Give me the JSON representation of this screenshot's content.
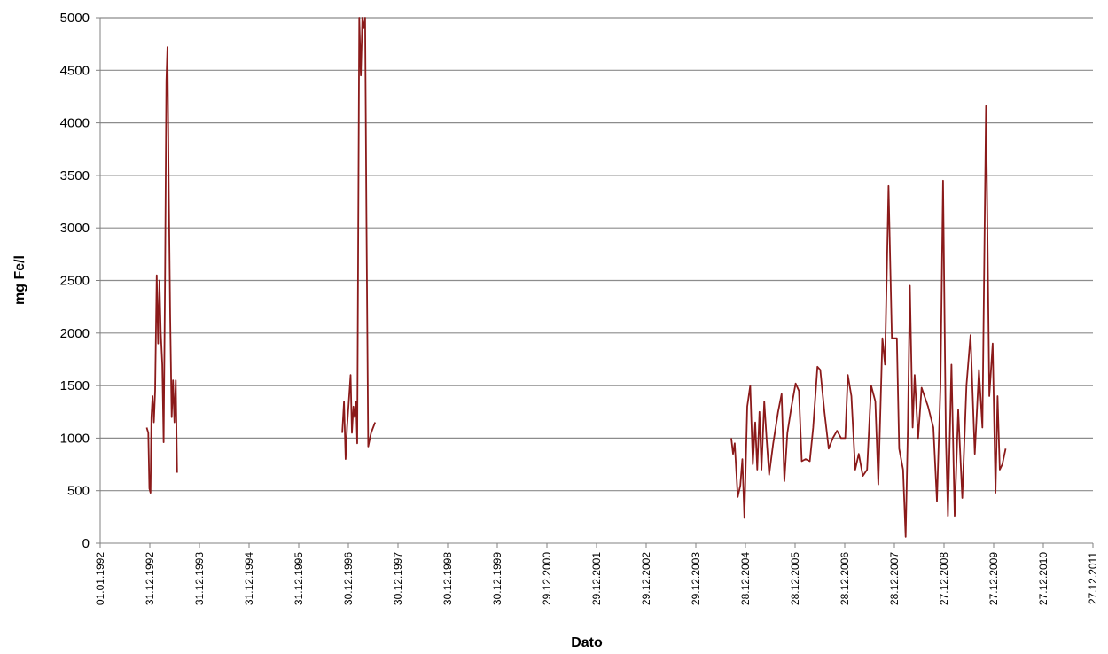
{
  "chart_data": {
    "type": "line",
    "xlabel": "Dato",
    "ylabel": "mg Fe/l",
    "ylim": [
      0,
      5000
    ],
    "xlim": [
      "1992-01-01",
      "2011-12-27"
    ],
    "y_ticks": [
      "0",
      "500",
      "1000",
      "1500",
      "2000",
      "2500",
      "3000",
      "3500",
      "4000",
      "4500",
      "5000"
    ],
    "x_ticks": [
      "01.01.1992",
      "31.12.1992",
      "31.12.1993",
      "31.12.1994",
      "31.12.1995",
      "30.12.1996",
      "30.12.1997",
      "30.12.1998",
      "30.12.1999",
      "29.12.2000",
      "29.12.2001",
      "29.12.2002",
      "29.12.2003",
      "28.12.2004",
      "28.12.2005",
      "28.12.2006",
      "28.12.2007",
      "27.12.2008",
      "27.12.2009",
      "27.12.2010",
      "27.12.2011"
    ],
    "grid": true,
    "line_color": "#8b1a1a",
    "series": [
      {
        "segments": [
          [
            [
              "1992-12-08",
              1100
            ],
            [
              "1992-12-20",
              1050
            ],
            [
              "1992-12-28",
              520
            ],
            [
              "1993-01-05",
              480
            ],
            [
              "1993-01-12",
              1200
            ],
            [
              "1993-01-20",
              1400
            ],
            [
              "1993-01-30",
              1150
            ],
            [
              "1993-02-08",
              1450
            ],
            [
              "1993-02-20",
              2550
            ],
            [
              "1993-03-02",
              1900
            ],
            [
              "1993-03-12",
              2500
            ],
            [
              "1993-03-22",
              2000
            ],
            [
              "1993-04-02",
              1700
            ],
            [
              "1993-04-12",
              960
            ],
            [
              "1993-04-22",
              2500
            ],
            [
              "1993-05-02",
              4400
            ],
            [
              "1993-05-10",
              4720
            ],
            [
              "1993-05-20",
              3300
            ],
            [
              "1993-05-30",
              2150
            ],
            [
              "1993-06-10",
              1200
            ],
            [
              "1993-06-20",
              1550
            ],
            [
              "1993-06-30",
              1150
            ],
            [
              "1993-07-10",
              1550
            ],
            [
              "1993-07-20",
              670
            ]
          ],
          [
            [
              "1996-11-15",
              1050
            ],
            [
              "1996-11-28",
              1350
            ],
            [
              "1996-12-10",
              800
            ],
            [
              "1996-12-20",
              1100
            ],
            [
              "1997-01-05",
              1400
            ],
            [
              "1997-01-15",
              1600
            ],
            [
              "1997-01-25",
              1050
            ],
            [
              "1997-02-05",
              1300
            ],
            [
              "1997-02-15",
              1200
            ],
            [
              "1997-02-25",
              1350
            ],
            [
              "1997-03-05",
              950
            ],
            [
              "1997-03-20",
              5000
            ],
            [
              "1997-04-01",
              4450
            ],
            [
              "1997-04-12",
              5000
            ],
            [
              "1997-04-22",
              4900
            ],
            [
              "1997-05-02",
              5000
            ],
            [
              "1997-05-12",
              3100
            ],
            [
              "1997-05-25",
              920
            ],
            [
              "1997-06-15",
              1050
            ],
            [
              "1997-07-15",
              1150
            ]
          ],
          [
            [
              "2004-09-15",
              1000
            ],
            [
              "2004-09-28",
              850
            ],
            [
              "2004-10-10",
              950
            ],
            [
              "2004-11-01",
              440
            ],
            [
              "2004-11-20",
              550
            ],
            [
              "2004-12-05",
              800
            ],
            [
              "2004-12-20",
              240
            ],
            [
              "2005-01-10",
              1300
            ],
            [
              "2005-02-01",
              1500
            ],
            [
              "2005-02-20",
              750
            ],
            [
              "2005-03-10",
              1150
            ],
            [
              "2005-03-25",
              700
            ],
            [
              "2005-04-10",
              1250
            ],
            [
              "2005-04-25",
              700
            ],
            [
              "2005-05-15",
              1350
            ],
            [
              "2005-06-01",
              1000
            ],
            [
              "2005-06-20",
              650
            ],
            [
              "2005-07-20",
              950
            ],
            [
              "2005-08-25",
              1250
            ],
            [
              "2005-09-20",
              1420
            ],
            [
              "2005-10-10",
              590
            ],
            [
              "2005-11-01",
              1050
            ],
            [
              "2005-12-01",
              1300
            ],
            [
              "2006-01-01",
              1520
            ],
            [
              "2006-01-25",
              1450
            ],
            [
              "2006-02-15",
              780
            ],
            [
              "2006-03-15",
              800
            ],
            [
              "2006-04-15",
              780
            ],
            [
              "2006-05-10",
              1100
            ],
            [
              "2006-06-10",
              1680
            ],
            [
              "2006-07-01",
              1650
            ],
            [
              "2006-08-01",
              1250
            ],
            [
              "2006-09-01",
              900
            ],
            [
              "2006-10-01",
              1000
            ],
            [
              "2006-11-01",
              1070
            ],
            [
              "2006-12-01",
              1000
            ],
            [
              "2007-01-01",
              1000
            ],
            [
              "2007-01-20",
              1600
            ],
            [
              "2007-02-15",
              1400
            ],
            [
              "2007-03-15",
              700
            ],
            [
              "2007-04-10",
              850
            ],
            [
              "2007-05-10",
              640
            ],
            [
              "2007-06-10",
              700
            ],
            [
              "2007-07-10",
              1500
            ],
            [
              "2007-08-10",
              1350
            ],
            [
              "2007-09-01",
              560
            ],
            [
              "2007-10-01",
              1950
            ],
            [
              "2007-10-20",
              1700
            ],
            [
              "2007-11-15",
              3400
            ],
            [
              "2007-12-10",
              1950
            ],
            [
              "2008-01-15",
              1950
            ],
            [
              "2008-02-01",
              900
            ],
            [
              "2008-03-01",
              700
            ],
            [
              "2008-03-20",
              60
            ],
            [
              "2008-04-05",
              1080
            ],
            [
              "2008-04-20",
              2450
            ],
            [
              "2008-05-10",
              1100
            ],
            [
              "2008-05-25",
              1600
            ],
            [
              "2008-06-20",
              1000
            ],
            [
              "2008-07-15",
              1480
            ],
            [
              "2008-09-01",
              1300
            ],
            [
              "2008-10-10",
              1100
            ],
            [
              "2008-11-05",
              400
            ],
            [
              "2008-12-01",
              1500
            ],
            [
              "2008-12-20",
              3450
            ],
            [
              "2009-01-10",
              1000
            ],
            [
              "2009-01-25",
              260
            ],
            [
              "2009-02-20",
              1700
            ],
            [
              "2009-03-15",
              260
            ],
            [
              "2009-04-10",
              1270
            ],
            [
              "2009-05-10",
              430
            ],
            [
              "2009-06-10",
              1500
            ],
            [
              "2009-07-10",
              1980
            ],
            [
              "2009-08-10",
              850
            ],
            [
              "2009-09-10",
              1650
            ],
            [
              "2009-10-05",
              1100
            ],
            [
              "2009-11-01",
              4160
            ],
            [
              "2009-11-25",
              1400
            ],
            [
              "2009-12-20",
              1900
            ],
            [
              "2010-01-10",
              480
            ],
            [
              "2010-01-25",
              1400
            ],
            [
              "2010-02-10",
              700
            ],
            [
              "2010-03-01",
              750
            ],
            [
              "2010-03-25",
              900
            ]
          ]
        ]
      }
    ]
  }
}
